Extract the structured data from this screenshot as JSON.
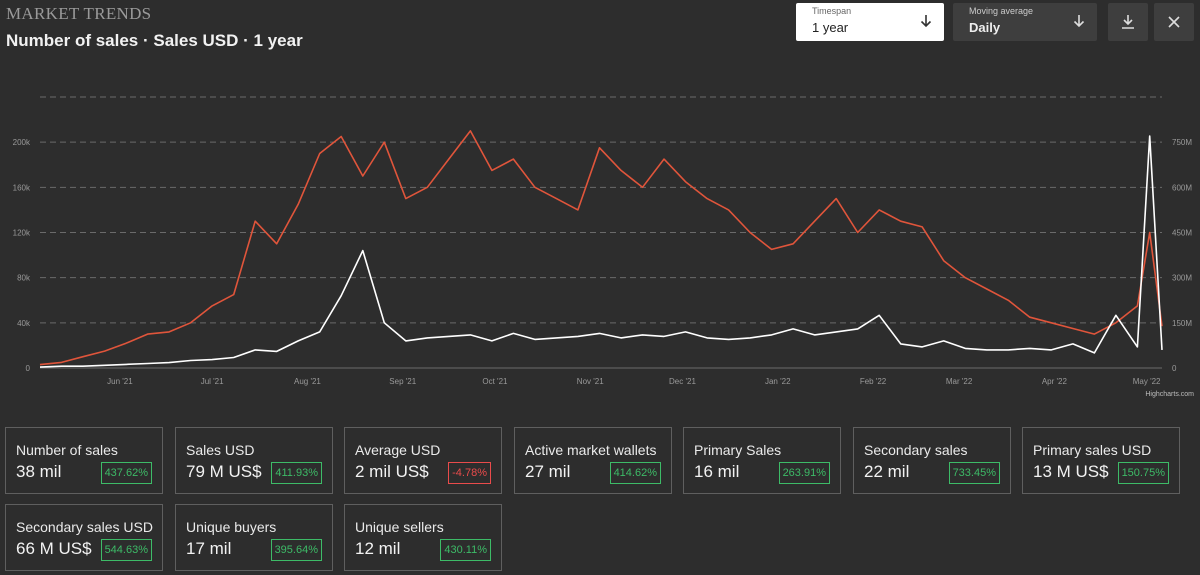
{
  "header": {
    "brand": "MARKET TRENDS",
    "subtitle": "Number of sales · Sales USD · 1 year"
  },
  "controls": {
    "timespan": {
      "label": "Timespan",
      "value": "1 year"
    },
    "moving_average": {
      "label": "Moving average",
      "value": "Daily"
    }
  },
  "colors": {
    "number_of_sales": "#e0553b",
    "sales_usd": "#ffffff",
    "badge_positive": "#3dbb67",
    "badge_negative": "#ea4b4b"
  },
  "chart_data": {
    "type": "line",
    "credit": "Highcharts.com",
    "x_labels": [
      "Jun '21",
      "Jul '21",
      "Aug '21",
      "Sep '21",
      "Oct '21",
      "Nov '21",
      "Dec '21",
      "Jan '22",
      "Feb '22",
      "Mar '22",
      "Apr '22",
      "May '22"
    ],
    "x": [
      "2021-05-06",
      "2021-05-13",
      "2021-05-20",
      "2021-05-27",
      "2021-06-03",
      "2021-06-10",
      "2021-06-17",
      "2021-06-24",
      "2021-07-01",
      "2021-07-08",
      "2021-07-15",
      "2021-07-22",
      "2021-07-29",
      "2021-08-05",
      "2021-08-12",
      "2021-08-19",
      "2021-08-26",
      "2021-09-02",
      "2021-09-09",
      "2021-09-16",
      "2021-09-23",
      "2021-09-30",
      "2021-10-07",
      "2021-10-14",
      "2021-10-21",
      "2021-10-28",
      "2021-11-04",
      "2021-11-11",
      "2021-11-18",
      "2021-11-25",
      "2021-12-02",
      "2021-12-09",
      "2021-12-16",
      "2021-12-23",
      "2021-12-30",
      "2022-01-06",
      "2022-01-13",
      "2022-01-20",
      "2022-01-27",
      "2022-02-03",
      "2022-02-10",
      "2022-02-17",
      "2022-02-24",
      "2022-03-03",
      "2022-03-10",
      "2022-03-17",
      "2022-03-24",
      "2022-03-31",
      "2022-04-07",
      "2022-04-14",
      "2022-04-21",
      "2022-04-28",
      "2022-05-02",
      "2022-05-06"
    ],
    "y_left": {
      "ticks": [
        "0",
        "40k",
        "80k",
        "120k",
        "160k",
        "200k"
      ],
      "range": [
        0,
        240000
      ]
    },
    "y_right": {
      "ticks": [
        "0",
        "150M",
        "300M",
        "450M",
        "600M",
        "750M"
      ],
      "range": [
        0,
        900000000
      ]
    },
    "grid": true,
    "series": [
      {
        "values": [
          3000,
          5000,
          10000,
          15000,
          22000,
          30000,
          32000,
          40000,
          55000,
          65000,
          130000,
          110000,
          145000,
          190000,
          205000,
          170000,
          200000,
          150000,
          160000,
          185000,
          210000,
          175000,
          185000,
          160000,
          150000,
          140000,
          195000,
          175000,
          160000,
          185000,
          165000,
          150000,
          140000,
          120000,
          105000,
          110000,
          130000,
          150000,
          120000,
          140000,
          130000,
          125000,
          95000,
          80000,
          70000,
          60000,
          45000,
          40000,
          35000,
          30000,
          40000,
          55000,
          120000,
          37000
        ]
      },
      {
        "values": [
          3000000,
          6000000,
          6000000,
          9000000,
          12000000,
          15000000,
          18000000,
          25000000,
          28000000,
          35000000,
          60000000,
          55000000,
          90000000,
          120000000,
          240000000,
          390000000,
          150000000,
          90000000,
          100000000,
          105000000,
          110000000,
          90000000,
          115000000,
          95000000,
          100000000,
          105000000,
          115000000,
          100000000,
          110000000,
          105000000,
          120000000,
          100000000,
          95000000,
          100000000,
          110000000,
          130000000,
          110000000,
          120000000,
          130000000,
          175000000,
          80000000,
          70000000,
          90000000,
          65000000,
          60000000,
          60000000,
          65000000,
          60000000,
          80000000,
          50000000,
          175000000,
          70000000,
          770000000,
          60000000
        ]
      }
    ]
  },
  "stats": [
    {
      "label": "Number of sales",
      "value": "38 mil",
      "change": "437.62%",
      "trend": "positive"
    },
    {
      "label": "Sales USD",
      "value": "79 M US$",
      "change": "411.93%",
      "trend": "positive"
    },
    {
      "label": "Average USD",
      "value": "2 mil US$",
      "change": "-4.78%",
      "trend": "negative"
    },
    {
      "label": "Active market wallets",
      "value": "27 mil",
      "change": "414.62%",
      "trend": "positive"
    },
    {
      "label": "Primary Sales",
      "value": "16 mil",
      "change": "263.91%",
      "trend": "positive"
    },
    {
      "label": "Secondary sales",
      "value": "22 mil",
      "change": "733.45%",
      "trend": "positive"
    },
    {
      "label": "Primary sales USD",
      "value": "13 M US$",
      "change": "150.75%",
      "trend": "positive"
    },
    {
      "label": "Secondary sales USD",
      "value": "66 M US$",
      "change": "544.63%",
      "trend": "positive"
    },
    {
      "label": "Unique buyers",
      "value": "17 mil",
      "change": "395.64%",
      "trend": "positive"
    },
    {
      "label": "Unique sellers",
      "value": "12 mil",
      "change": "430.11%",
      "trend": "positive"
    }
  ]
}
